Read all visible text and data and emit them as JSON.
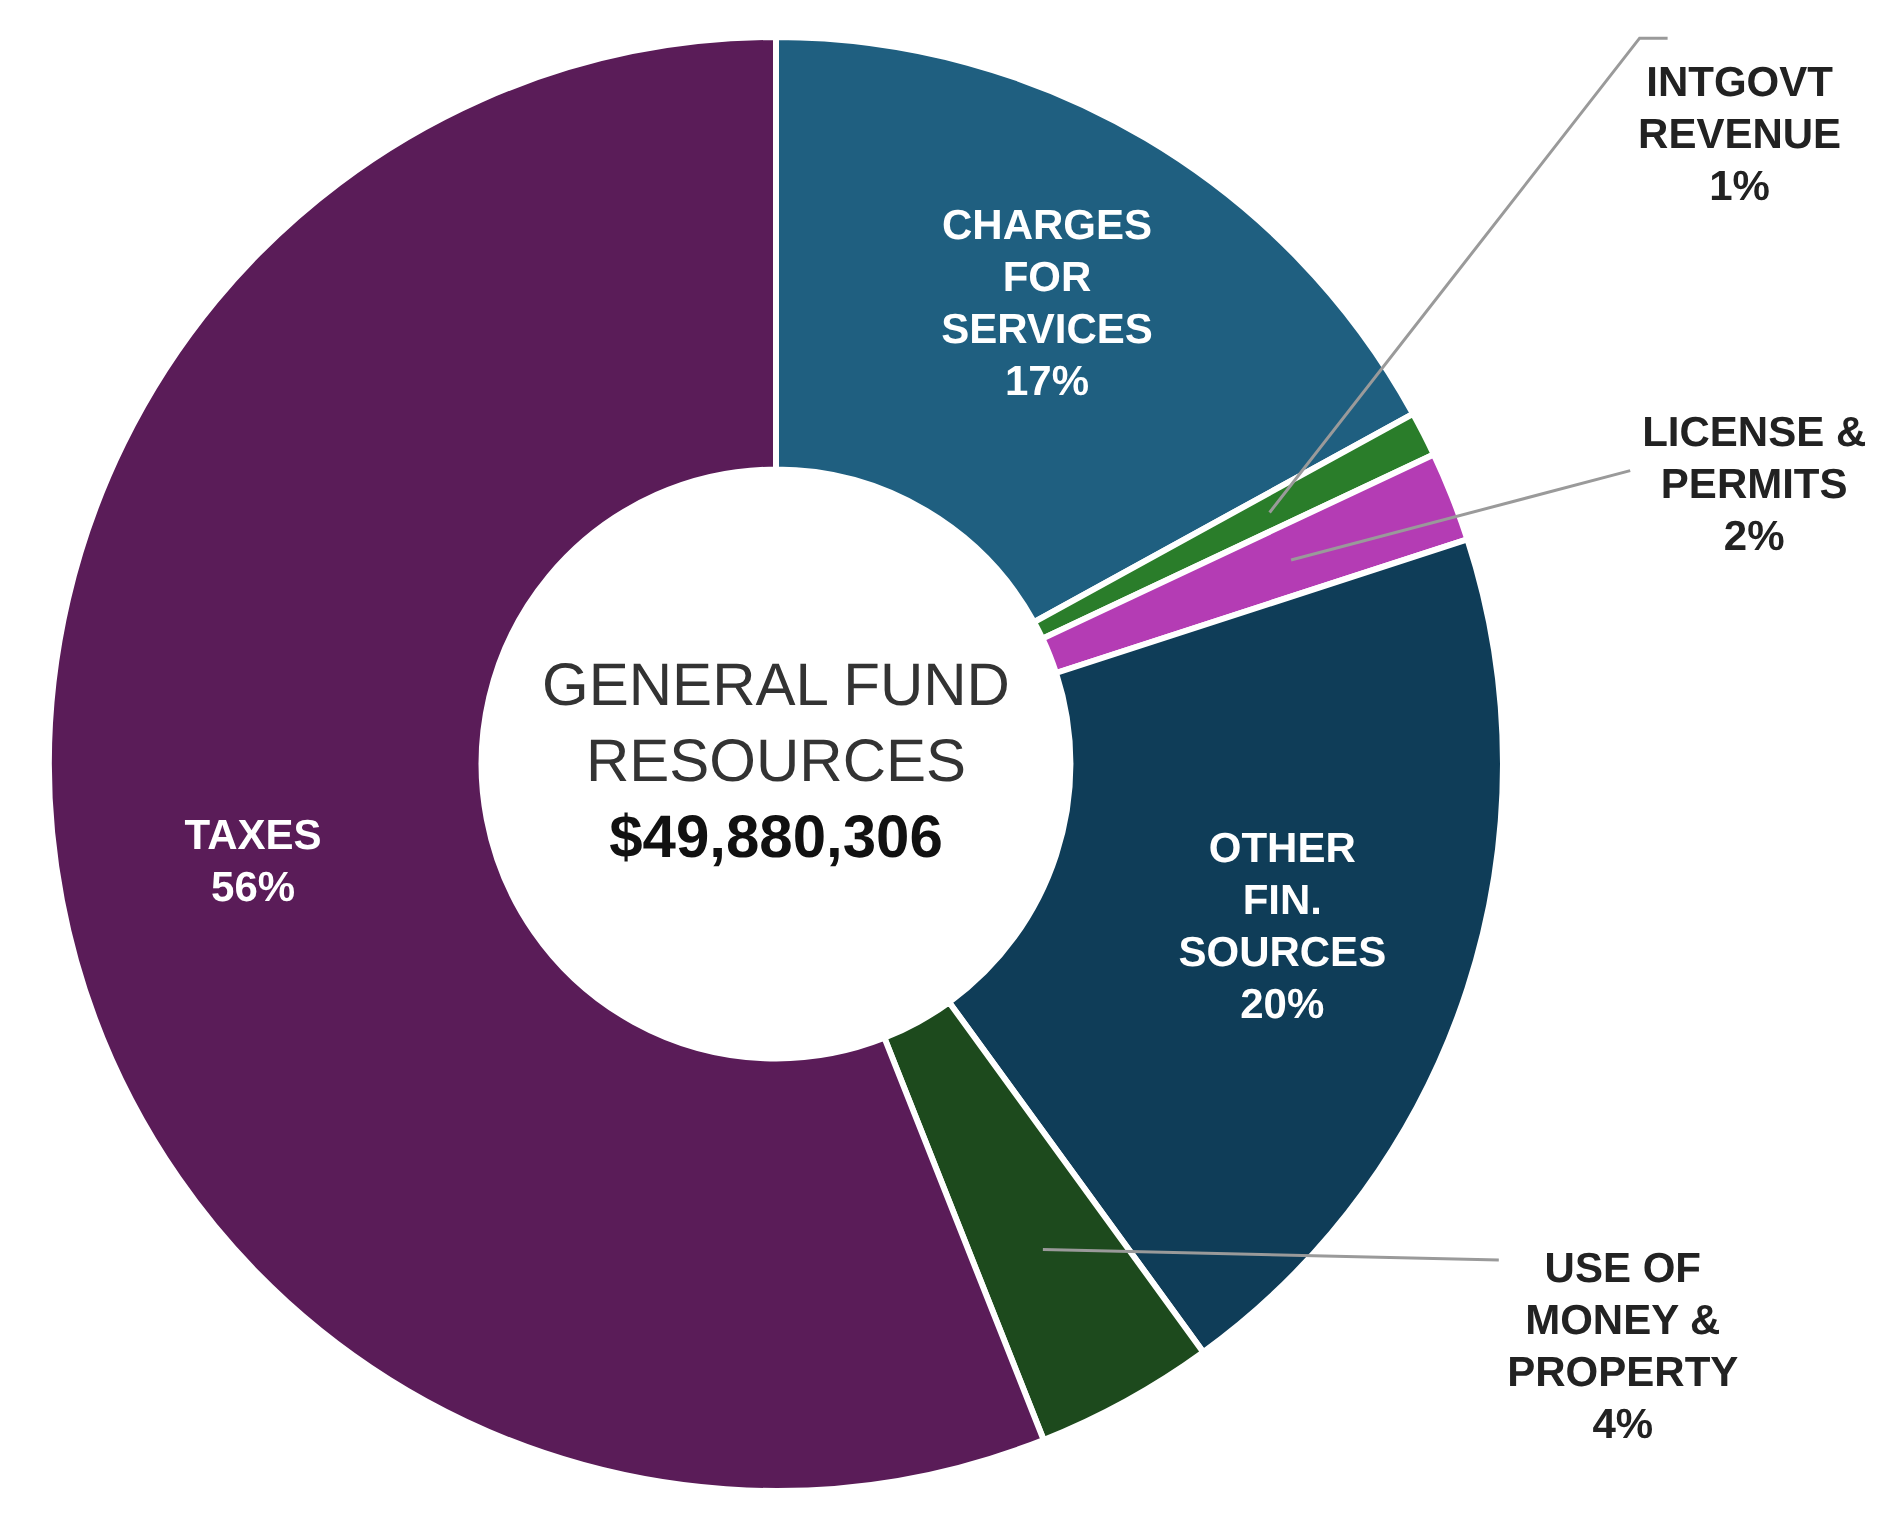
{
  "chart_data": {
    "type": "donut",
    "title": "GENERAL FUND RESOURCES",
    "subtitle": "$49,880,306",
    "categories": [
      "CHARGES FOR SERVICES",
      "INTGOVT REVENUE",
      "LICENSE & PERMITS",
      "OTHER FIN. SOURCES",
      "USE OF MONEY & PROPERTY",
      "TAXES"
    ],
    "values": [
      17,
      1,
      2,
      20,
      4,
      56
    ],
    "value_labels": [
      "17%",
      "1%",
      "2%",
      "20%",
      "4%",
      "56%"
    ],
    "colors": [
      "#1f5f80",
      "#2a7d2a",
      "#b43cb4",
      "#0f3d58",
      "#1d4a1d",
      "#5a1c58"
    ],
    "legend": false
  }
}
